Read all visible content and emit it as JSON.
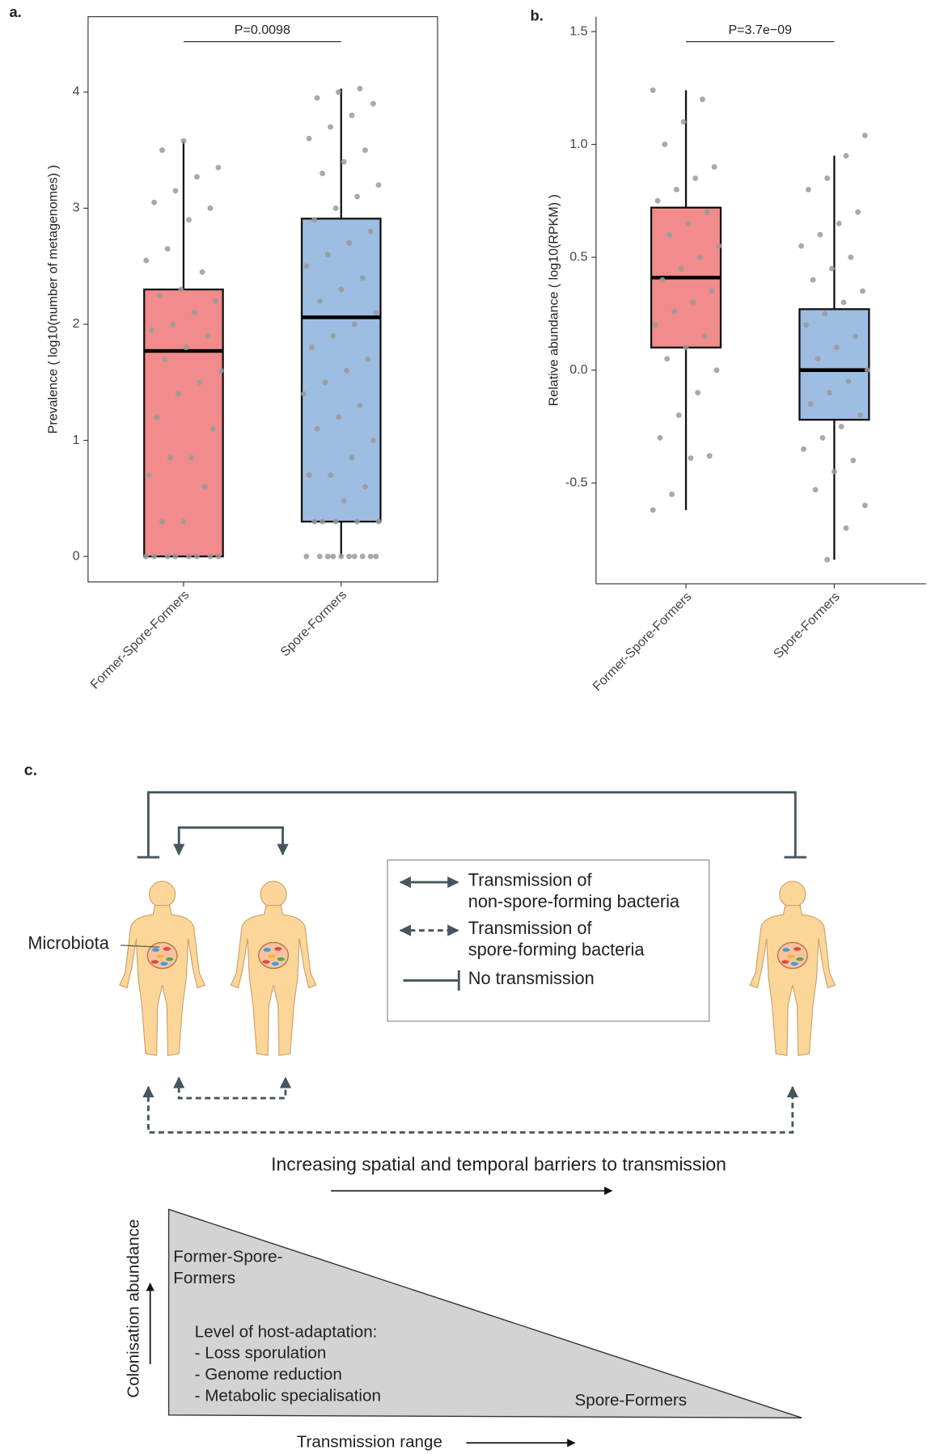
{
  "chart_data": [
    {
      "type": "box",
      "label": "a.",
      "ylabel": "Prevalence ( log10(number of metagenomes) )",
      "annotation": "P=0.0098",
      "categories": [
        "Former-Spore-Formers",
        "Spore-Formers"
      ],
      "boxes": [
        {
          "color": "#f28b8b",
          "whislo": 0,
          "q1": 0,
          "med": 1.77,
          "q3": 2.3,
          "whishi": 3.58
        },
        {
          "color": "#9dbde3",
          "whislo": 0,
          "q1": 0.3,
          "med": 2.06,
          "q3": 2.91,
          "whishi": 4.03
        }
      ],
      "points": [
        [
          0,
          0,
          0,
          0,
          0,
          0,
          0,
          0,
          0.3,
          0.3,
          0.6,
          0.7,
          0.85,
          0.85,
          1.1,
          1.2,
          1.4,
          1.5,
          1.6,
          1.7,
          1.8,
          1.9,
          1.95,
          2.0,
          2.1,
          2.2,
          2.25,
          2.3,
          2.45,
          2.55,
          2.65,
          2.9,
          3.0,
          3.05,
          3.15,
          3.27,
          3.35,
          3.5,
          3.58
        ],
        [
          0,
          0,
          0,
          0,
          0,
          0,
          0,
          0,
          0,
          0,
          0.3,
          0.3,
          0.3,
          0.3,
          0.3,
          0.48,
          0.6,
          0.7,
          0.7,
          0.85,
          1.0,
          1.1,
          1.2,
          1.3,
          1.4,
          1.5,
          1.6,
          1.7,
          1.8,
          1.9,
          2.0,
          2.1,
          2.2,
          2.3,
          2.4,
          2.5,
          2.6,
          2.7,
          2.8,
          2.9,
          3.0,
          3.1,
          3.2,
          3.3,
          3.4,
          3.5,
          3.6,
          3.7,
          3.8,
          3.9,
          3.95,
          4.0,
          4.03
        ]
      ],
      "point_color": "#9a9a9a",
      "ylim": [
        -0.22,
        4.65
      ],
      "yticks": [
        0,
        1,
        2,
        3,
        4
      ]
    },
    {
      "type": "box",
      "label": "b.",
      "ylabel": "Relative abundance ( log10(RPKM) )",
      "annotation": "P=3.7e−09",
      "categories": [
        "Former-Spore-Formers",
        "Spore-Formers"
      ],
      "boxes": [
        {
          "color": "#f28b8b",
          "whislo": -0.62,
          "q1": 0.1,
          "med": 0.41,
          "q3": 0.72,
          "whishi": 1.24
        },
        {
          "color": "#9dbde3",
          "whislo": -0.84,
          "q1": -0.22,
          "med": 0.0,
          "q3": 0.27,
          "whishi": 0.95
        }
      ],
      "points": [
        [
          -0.62,
          -0.55,
          -0.39,
          -0.38,
          -0.3,
          -0.2,
          -0.1,
          0.0,
          0.05,
          0.1,
          0.15,
          0.2,
          0.26,
          0.3,
          0.35,
          0.4,
          0.45,
          0.5,
          0.55,
          0.6,
          0.65,
          0.7,
          0.75,
          0.8,
          0.85,
          0.9,
          1.0,
          1.1,
          1.2,
          1.24
        ],
        [
          -0.84,
          -0.7,
          -0.6,
          -0.53,
          -0.45,
          -0.4,
          -0.35,
          -0.3,
          -0.25,
          -0.2,
          -0.15,
          -0.1,
          -0.05,
          0,
          0.05,
          0.1,
          0.15,
          0.2,
          0.25,
          0.3,
          0.35,
          0.4,
          0.45,
          0.5,
          0.55,
          0.6,
          0.65,
          0.7,
          0.8,
          0.85,
          0.95,
          1.04
        ]
      ],
      "point_color": "#9a9a9a",
      "ylim": [
        -0.947,
        1.566
      ],
      "yticks": [
        -0.5,
        {
          "value": 0,
          "label": "0.0"
        },
        0.5,
        {
          "value": 1,
          "label": "1.0"
        },
        1.5
      ]
    }
  ],
  "diagram": {
    "label": "c.",
    "microbiota": "Microbiota",
    "legend": [
      {
        "lines": [
          "Transmission of",
          "non-spore-forming bacteria"
        ]
      },
      {
        "lines": [
          "Transmission of",
          "spore-forming bacteria"
        ]
      },
      {
        "lines": [
          "No transmission"
        ]
      }
    ],
    "barrier_caption": "Increasing spatial and temporal barriers to transmission",
    "y_axis": "Colonisation abundance",
    "x_axis": "Transmission range",
    "top_group": [
      "Former-Spore-",
      "Formers"
    ],
    "adaptation": [
      "Level of host-adaptation:",
      "- Loss sporulation",
      "- Genome reduction",
      "- Metabolic specialisation"
    ],
    "bottom_group": "Spore-Formers"
  }
}
